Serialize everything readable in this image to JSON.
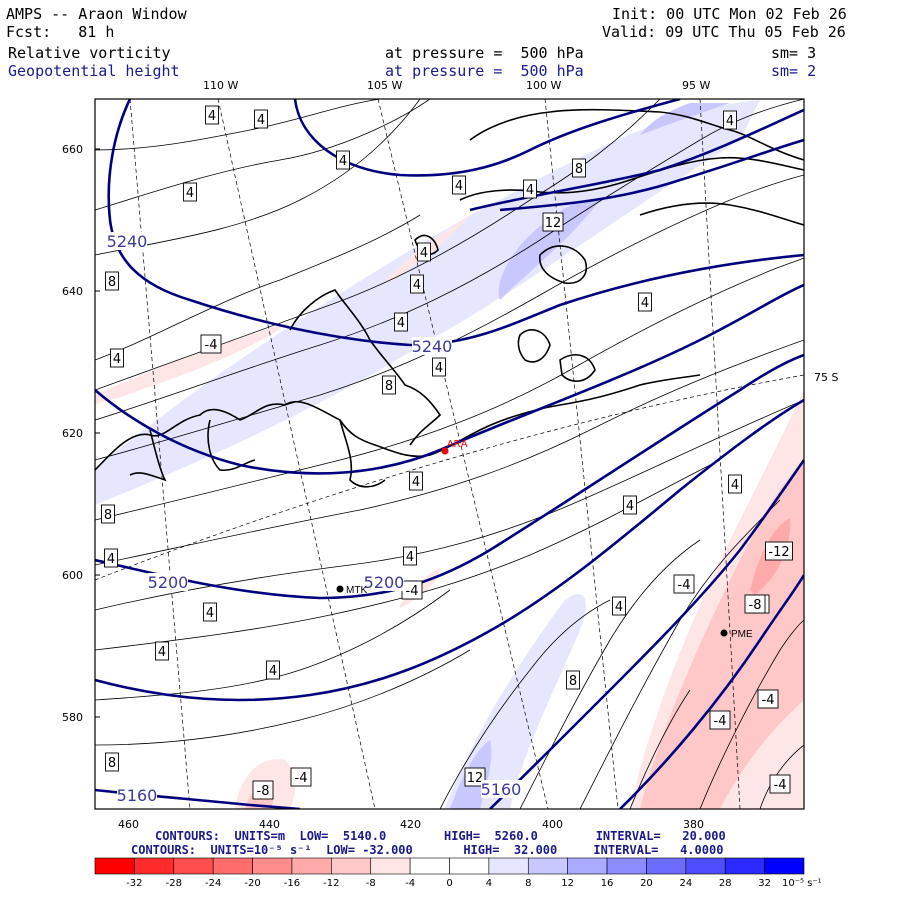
{
  "header": {
    "title": "AMPS -- Araon Window",
    "fcst": "Fcst:   81 h",
    "field1": "Relative vorticity",
    "field2": "Geopotential height",
    "init": "Init: 00 UTC Mon 02 Feb 26",
    "valid": "Valid: 09 UTC Thu 05 Feb 26",
    "pressure1": "at pressure =  500 hPa",
    "pressure2": "at pressure =  500 hPa",
    "sm1": "sm= 3",
    "sm2": "sm= 2"
  },
  "axes": {
    "top_lon": [
      "110 W",
      "105 W",
      "100 W",
      "95 W"
    ],
    "left_y": [
      "660",
      "640",
      "620",
      "600",
      "580"
    ],
    "bottom_x": [
      "460",
      "440",
      "420",
      "400",
      "380"
    ],
    "lat_label": "75 S"
  },
  "stations": [
    "ARA",
    "MTK",
    "PME"
  ],
  "height_labels": [
    "5240",
    "5240",
    "5200",
    "5200",
    "5160",
    "5160"
  ],
  "vort_labels": [
    "4",
    "4",
    "4",
    "4",
    "4",
    "8",
    "4",
    "4",
    "12",
    "4",
    "4",
    "4",
    "8",
    "4",
    "-4",
    "4",
    "8",
    "4",
    "4",
    "8",
    "4",
    "4",
    "4",
    "4",
    "4",
    "4",
    "4",
    "8",
    "4",
    "-4",
    "4",
    "-8",
    "-12",
    "-8",
    "-4",
    "-4",
    "-4",
    "-4",
    "-8",
    "8",
    "12",
    "-4"
  ],
  "footer": {
    "line1": "CONTOURS:  UNITS=m  LOW=  5140.0        HIGH=  5260.0        INTERVAL=   20.000",
    "line2": "CONTOURS:  UNITS=10⁻⁵ s⁻¹  LOW= -32.000       HIGH=  32.000     INTERVAL=   4.0000"
  },
  "colorbar": {
    "ticks": [
      "-32",
      "-28",
      "-24",
      "-20",
      "-16",
      "-12",
      "-8",
      "-4",
      "0",
      "4",
      "8",
      "12",
      "16",
      "20",
      "24",
      "28",
      "32"
    ],
    "units": "10⁻⁵ s⁻¹",
    "colors": [
      "#ff0000",
      "#ff2a2a",
      "#ff4e4e",
      "#ff6c6c",
      "#ff8c8c",
      "#ffaaaa",
      "#ffc8c8",
      "#ffe6e6",
      "#ffffff",
      "#ffffff",
      "#e6e6ff",
      "#c8c8ff",
      "#aaaaff",
      "#8c8cff",
      "#6c6cff",
      "#4e4eff",
      "#2a2aff",
      "#0000ff"
    ]
  }
}
